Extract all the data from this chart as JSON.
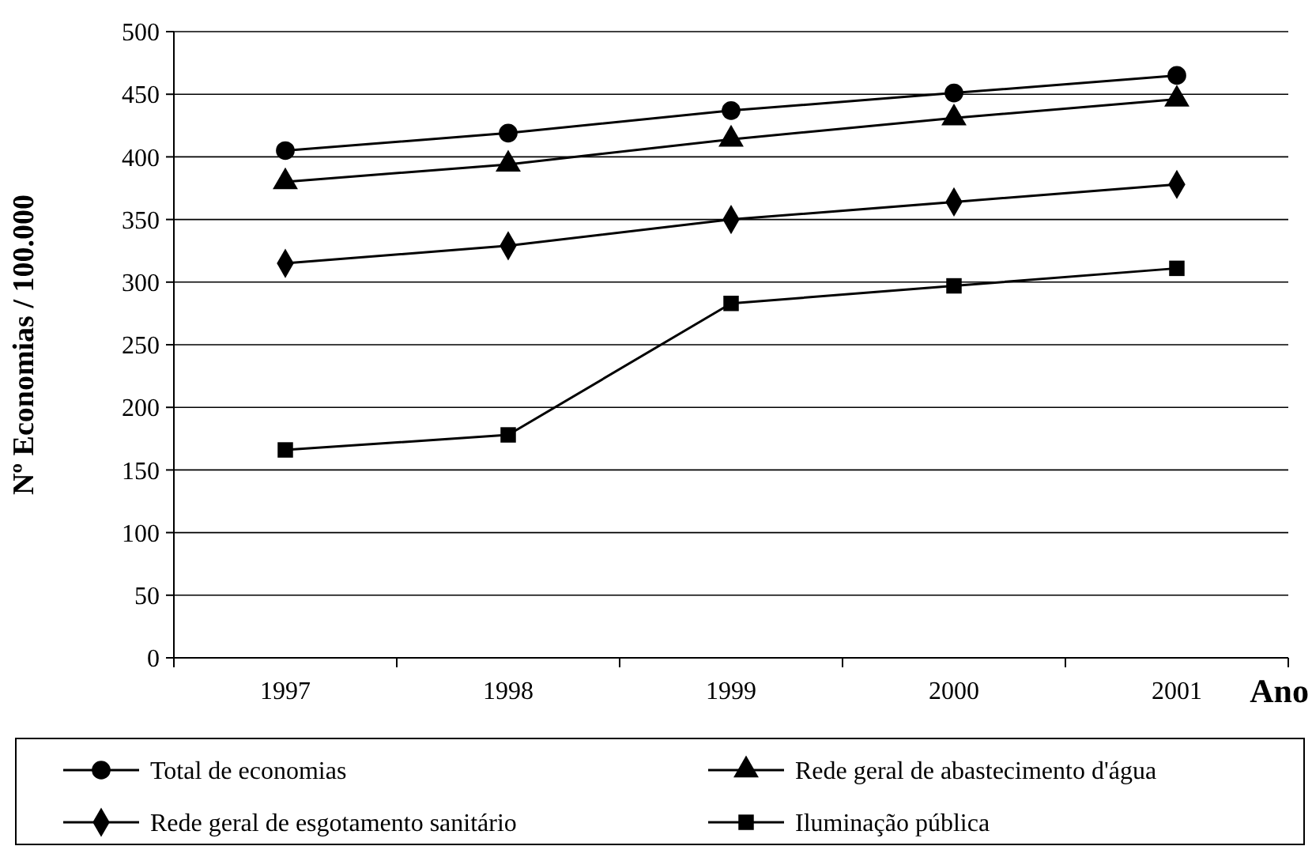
{
  "chart_data": {
    "type": "line",
    "xlabel": "Ano",
    "ylabel": "Nº Economias / 100.000",
    "categories": [
      "1997",
      "1998",
      "1999",
      "2000",
      "2001"
    ],
    "series": [
      {
        "name": "Total de economias",
        "color": "#000000",
        "marker": "circle",
        "values": [
          405,
          419,
          437,
          451,
          465
        ]
      },
      {
        "name": "Rede geral de abastecimento d'água",
        "color": "#000000",
        "marker": "triangle",
        "values": [
          380,
          394,
          414,
          431,
          446
        ]
      },
      {
        "name": "Rede geral de esgotamento sanitário",
        "color": "#000000",
        "marker": "diamond",
        "values": [
          315,
          329,
          350,
          364,
          378
        ]
      },
      {
        "name": "Iluminação pública",
        "color": "#000000",
        "marker": "square",
        "values": [
          166,
          178,
          283,
          297,
          311
        ]
      }
    ],
    "ylim": [
      0,
      500
    ],
    "yticks": [
      0,
      50,
      100,
      150,
      200,
      250,
      300,
      350,
      400,
      450,
      500
    ],
    "grid": "y",
    "legend": "bottom",
    "line_style": "solid"
  }
}
